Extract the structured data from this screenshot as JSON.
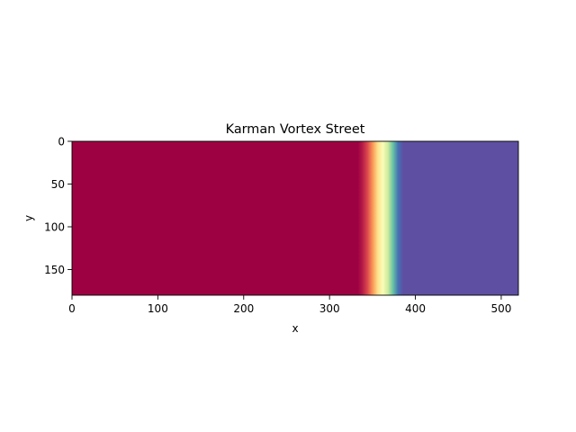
{
  "chart_data": {
    "type": "heatmap",
    "title": "Karman Vortex Street",
    "xlabel": "x",
    "ylabel": "y",
    "xlim": [
      0,
      520
    ],
    "ylim": [
      180,
      0
    ],
    "y_inverted": true,
    "x_ticks": [
      0,
      100,
      200,
      300,
      400,
      500
    ],
    "y_ticks": [
      0,
      50,
      100,
      150
    ],
    "grid": false,
    "colormap": "Spectral",
    "field_profile_along_x": [
      {
        "x": 0,
        "value": 0.0
      },
      {
        "x": 333,
        "value": 0.0
      },
      {
        "x": 338,
        "value": 0.04
      },
      {
        "x": 344,
        "value": 0.12
      },
      {
        "x": 350,
        "value": 0.26
      },
      {
        "x": 356,
        "value": 0.4
      },
      {
        "x": 362,
        "value": 0.52
      },
      {
        "x": 368,
        "value": 0.64
      },
      {
        "x": 374,
        "value": 0.8
      },
      {
        "x": 380,
        "value": 0.94
      },
      {
        "x": 386,
        "value": 1.0
      },
      {
        "x": 520,
        "value": 1.0
      }
    ],
    "colormap_stops": [
      {
        "value": 0.0,
        "color": "#9e0142"
      },
      {
        "value": 0.1,
        "color": "#d53e4f"
      },
      {
        "value": 0.2,
        "color": "#f46d43"
      },
      {
        "value": 0.3,
        "color": "#fdae61"
      },
      {
        "value": 0.4,
        "color": "#fee08b"
      },
      {
        "value": 0.5,
        "color": "#ffffbf"
      },
      {
        "value": 0.6,
        "color": "#e6f598"
      },
      {
        "value": 0.7,
        "color": "#abdda4"
      },
      {
        "value": 0.8,
        "color": "#66c2a5"
      },
      {
        "value": 0.9,
        "color": "#3288bd"
      },
      {
        "value": 1.0,
        "color": "#5e4fa2"
      }
    ]
  }
}
